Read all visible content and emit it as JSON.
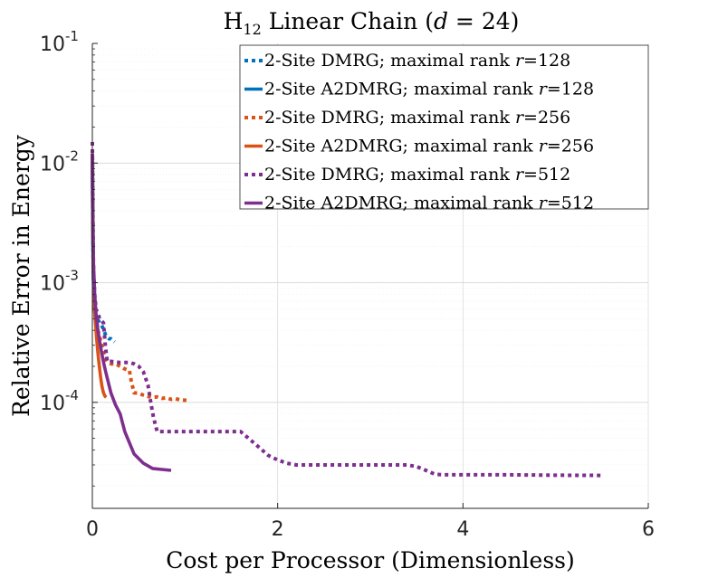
{
  "chart_data": {
    "type": "line",
    "title": {
      "main": "H",
      "subscript": "12",
      "rest": " Linear Chain (",
      "var": "d",
      "eq": " = 24)"
    },
    "xlabel": "Cost per Processor (Dimensionless)",
    "ylabel": "Relative Error in Energy",
    "xlim": [
      0,
      6
    ],
    "ylim": [
      1.3e-05,
      0.1
    ],
    "yscale": "log",
    "grid": true,
    "legend_position": "top-right",
    "x_ticks": [
      {
        "value": 0,
        "label": "0"
      },
      {
        "value": 2,
        "label": "2"
      },
      {
        "value": 4,
        "label": "4"
      },
      {
        "value": 6,
        "label": "6"
      }
    ],
    "y_ticks": [
      {
        "value": 0.1,
        "base": "10",
        "exp": "-1"
      },
      {
        "value": 0.01,
        "base": "10",
        "exp": "-2"
      },
      {
        "value": 0.001,
        "base": "10",
        "exp": "-3"
      },
      {
        "value": 0.0001,
        "base": "10",
        "exp": "-4"
      }
    ],
    "series": [
      {
        "name": "2-Site DMRG; maximal rank r=128",
        "legend_prefix": "2-Site DMRG; maximal rank ",
        "legend_var": "r",
        "legend_value": "=128",
        "color": "#0072BD",
        "dash": "dotted",
        "x": [
          0.0,
          0.004,
          0.01,
          0.02,
          0.03,
          0.045,
          0.06,
          0.08,
          0.1,
          0.12,
          0.14,
          0.16,
          0.18,
          0.2,
          0.22,
          0.24
        ],
        "y": [
          0.012,
          0.004,
          0.0013,
          0.00075,
          0.00055,
          0.00052,
          0.00049,
          0.00046,
          0.00044,
          0.00041,
          0.00037,
          0.00035,
          0.00034,
          0.00034,
          0.00033,
          0.00032
        ]
      },
      {
        "name": "2-Site A2DMRG; maximal rank r=128",
        "legend_prefix": "2-Site A2DMRG; maximal rank ",
        "legend_var": "r",
        "legend_value": "=128",
        "color": "#0072BD",
        "dash": "solid",
        "x": [
          0.0,
          0.004,
          0.01,
          0.02,
          0.03,
          0.04,
          0.05,
          0.06,
          0.07
        ],
        "y": [
          0.011,
          0.003,
          0.0011,
          0.00065,
          0.00052,
          0.00047,
          0.00045,
          0.00044,
          0.00044
        ]
      },
      {
        "name": "2-Site DMRG; maximal rank r=256",
        "legend_prefix": "2-Site DMRG; maximal rank ",
        "legend_var": "r",
        "legend_value": "=256",
        "color": "#D95319",
        "dash": "dotted",
        "x": [
          0.0,
          0.005,
          0.012,
          0.025,
          0.04,
          0.06,
          0.08,
          0.1,
          0.13,
          0.16,
          0.2,
          0.25,
          0.3,
          0.35,
          0.4,
          0.42,
          0.45,
          0.5,
          0.55,
          0.6,
          0.65,
          0.7,
          0.75,
          0.8,
          0.85,
          0.9,
          0.95,
          1.02
        ],
        "y": [
          0.013,
          0.004,
          0.0013,
          0.0007,
          0.0005,
          0.0004,
          0.00035,
          0.0003,
          0.00024,
          0.00022,
          0.00021,
          0.00021,
          0.0002,
          0.00019,
          0.000185,
          0.00015,
          0.00012,
          0.000119,
          0.000115,
          0.000112,
          0.00011,
          0.000111,
          0.000108,
          0.000109,
          0.000106,
          0.000107,
          0.000105,
          0.000104
        ]
      },
      {
        "name": "2-Site A2DMRG; maximal rank r=256",
        "legend_prefix": "2-Site A2DMRG; maximal rank ",
        "legend_var": "r",
        "legend_value": "=256",
        "color": "#D95319",
        "dash": "solid",
        "x": [
          0.0,
          0.004,
          0.01,
          0.02,
          0.03,
          0.045,
          0.06,
          0.075,
          0.09,
          0.105,
          0.12,
          0.135,
          0.15
        ],
        "y": [
          0.012,
          0.004,
          0.0013,
          0.0007,
          0.0005,
          0.00035,
          0.00026,
          0.0002,
          0.00016,
          0.000135,
          0.00012,
          0.000113,
          0.00011
        ]
      },
      {
        "name": "2-Site DMRG; maximal rank r=512",
        "legend_prefix": "2-Site DMRG; maximal rank ",
        "legend_var": "r",
        "legend_value": "=512",
        "color": "#7E2F8E",
        "dash": "dotted",
        "x": [
          0.0,
          0.005,
          0.012,
          0.025,
          0.04,
          0.06,
          0.08,
          0.1,
          0.12,
          0.14,
          0.16,
          0.2,
          0.3,
          0.4,
          0.45,
          0.5,
          0.55,
          0.6,
          0.63,
          0.66,
          0.7,
          0.8,
          1.0,
          1.3,
          1.6,
          1.7,
          1.8,
          1.9,
          2.0,
          2.1,
          2.2,
          2.4,
          2.6,
          2.8,
          3.0,
          3.2,
          3.4,
          3.5,
          3.6,
          3.7,
          3.8,
          4.0,
          4.5,
          5.0,
          5.5
        ],
        "y": [
          0.015,
          0.004,
          0.0013,
          0.0008,
          0.0006,
          0.00055,
          0.0005,
          0.00048,
          0.00046,
          0.0003,
          0.00022,
          0.00022,
          0.000215,
          0.000215,
          0.00021,
          0.0002,
          0.00018,
          0.00014,
          0.0001,
          7.5e-05,
          5.7e-05,
          5.7e-05,
          5.7e-05,
          5.7e-05,
          5.7e-05,
          4.9e-05,
          4.2e-05,
          3.6e-05,
          3.3e-05,
          3.1e-05,
          3e-05,
          3e-05,
          3e-05,
          3e-05,
          3e-05,
          3e-05,
          3e-05,
          2.9e-05,
          2.7e-05,
          2.5e-05,
          2.48e-05,
          2.48e-05,
          2.48e-05,
          2.46e-05,
          2.45e-05
        ]
      },
      {
        "name": "2-Site A2DMRG; maximal rank r=512",
        "legend_prefix": "2-Site A2DMRG; maximal rank ",
        "legend_var": "r",
        "legend_value": "=512",
        "color": "#7E2F8E",
        "dash": "solid",
        "x": [
          0.0,
          0.005,
          0.012,
          0.025,
          0.04,
          0.06,
          0.08,
          0.1,
          0.13,
          0.16,
          0.2,
          0.25,
          0.3,
          0.35,
          0.45,
          0.55,
          0.65,
          0.75,
          0.85
        ],
        "y": [
          0.012,
          0.004,
          0.0015,
          0.0008,
          0.00055,
          0.0004,
          0.00032,
          0.00026,
          0.0002,
          0.00016,
          0.00012,
          9.5e-05,
          8e-05,
          5.7e-05,
          3.7e-05,
          3.1e-05,
          2.8e-05,
          2.75e-05,
          2.7e-05
        ]
      }
    ]
  }
}
